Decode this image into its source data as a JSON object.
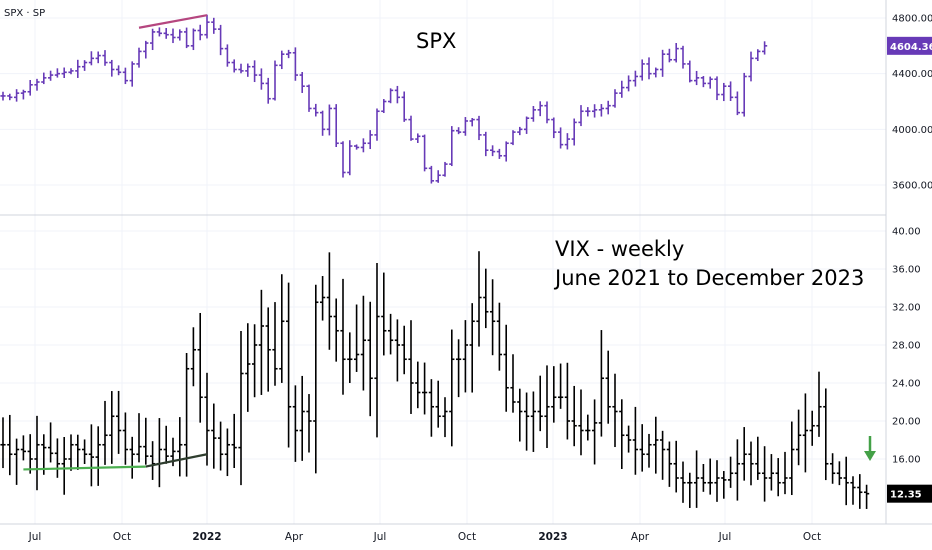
{
  "symbol_label": "SPX · SP",
  "colors": {
    "spx": "#673ab7",
    "vix": "#000000",
    "spx_last_bg": "#673ab7",
    "vix_last_bg": "#000000",
    "top_trendline": "#b5467f",
    "green_trendline": "#4caf50",
    "dark_trendline": "#2e3d2e",
    "arrow": "#43a047",
    "grid": "#f0f3fa",
    "axis_border": "#d1d4dc"
  },
  "time_axis": [
    "Jul",
    "Oct",
    "2022",
    "Apr",
    "Jul",
    "Oct",
    "2023",
    "Apr",
    "Jul",
    "Oct"
  ],
  "annotations": {
    "spx_title": "SPX",
    "vix_line1": "VIX - weekly",
    "vix_line2": "June 2021 to December 2023"
  },
  "chart_data": [
    {
      "type": "ohlc",
      "title": "SPX",
      "symbol": "SPX · SP",
      "frequency": "weekly",
      "ylim": [
        3400,
        4950
      ],
      "yticks": [
        3600,
        4000,
        4400,
        4800
      ],
      "ytick_labels": [
        "3600.00",
        "4000.00",
        "4400.00",
        "4800.00"
      ],
      "last_value": "4604.36",
      "grid": true,
      "trendlines": [
        {
          "color": "top_trendline",
          "from": {
            "week": 20,
            "value": 4730
          },
          "to": {
            "week": 30,
            "value": 4820
          }
        }
      ],
      "bars_weekly_close": [
        4240,
        4230,
        4260,
        4270,
        4320,
        4340,
        4370,
        4390,
        4400,
        4410,
        4420,
        4450,
        4480,
        4510,
        4530,
        4480,
        4430,
        4410,
        4350,
        4470,
        4560,
        4620,
        4700,
        4690,
        4680,
        4660,
        4700,
        4600,
        4710,
        4680,
        4770,
        4720,
        4580,
        4480,
        4430,
        4420,
        4450,
        4390,
        4330,
        4220,
        4460,
        4540,
        4550,
        4390,
        4310,
        4150,
        4120,
        4000,
        4150,
        3900,
        3690,
        3880,
        3870,
        3900,
        3960,
        4130,
        4200,
        4280,
        4230,
        4070,
        3930,
        3950,
        3720,
        3630,
        3670,
        3750,
        3990,
        3980,
        4060,
        4070,
        3960,
        3850,
        3840,
        3810,
        3900,
        3980,
        4000,
        4080,
        4140,
        4170,
        4070,
        3980,
        3890,
        3930,
        4050,
        4130,
        4130,
        4140,
        4150,
        4170,
        4260,
        4300,
        4350,
        4380,
        4470,
        4400,
        4430,
        4540,
        4500,
        4580,
        4470,
        4350,
        4370,
        4330,
        4360,
        4250,
        4310,
        4230,
        4120,
        4380,
        4510,
        4560,
        4600
      ]
    },
    {
      "type": "ohlc",
      "title": "VIX - weekly",
      "subtitle": "June 2021 to December 2023",
      "frequency": "weekly",
      "ylim": [
        11,
        40
      ],
      "yticks": [
        16,
        20,
        24,
        28,
        32,
        36,
        40
      ],
      "ytick_labels": [
        "16.00",
        "20.00",
        "24.00",
        "28.00",
        "32.00",
        "36.00",
        "40.00"
      ],
      "last_value": "12.35",
      "grid": true,
      "trendlines": [
        {
          "color": "green_trendline",
          "from": {
            "week": 3,
            "value": 14.9
          },
          "to": {
            "week": 21,
            "value": 15.2
          }
        },
        {
          "color": "dark_trendline",
          "from": {
            "week": 21,
            "value": 15.2
          },
          "to": {
            "week": 30,
            "value": 16.5
          }
        }
      ],
      "bars_weekly_close": [
        17.5,
        16.5,
        17.0,
        16.8,
        16.0,
        17.5,
        17.2,
        16.6,
        15.5,
        16.0,
        17.5,
        17.0,
        16.5,
        16.2,
        17.5,
        18.5,
        20.5,
        19.0,
        17.0,
        16.5,
        17.3,
        16.3,
        15.5,
        17.0,
        16.3,
        16.8,
        17.5,
        25.5,
        27.5,
        22.5,
        19.0,
        18.2,
        16.5,
        17.5,
        17.2,
        25.0,
        26.0,
        28.0,
        30.0,
        27.5,
        25.5,
        30.5,
        21.5,
        19.0,
        21.0,
        20.0,
        32.5,
        33.0,
        31.0,
        29.5,
        26.5,
        26.5,
        27.0,
        28.5,
        24.5,
        31.0,
        29.5,
        28.5,
        28.0,
        26.5,
        24.0,
        23.0,
        23.0,
        21.5,
        20.5,
        21.0,
        26.5,
        26.5,
        28.0,
        30.5,
        33.0,
        31.5,
        30.5,
        27.0,
        23.5,
        22.0,
        21.0,
        20.5,
        21.0,
        20.5,
        21.5,
        22.5,
        22.5,
        20.0,
        19.5,
        19.0,
        19.0,
        19.8,
        24.5,
        21.5,
        21.0,
        18.5,
        18.0,
        17.0,
        16.5,
        17.5,
        18.0,
        17.0,
        15.5,
        14.0,
        13.5,
        13.5,
        14.0,
        13.5,
        13.5,
        14.0,
        13.8,
        14.5,
        15.5,
        16.5,
        15.5,
        14.5,
        14.0,
        14.5,
        13.5,
        14.0,
        17.0,
        18.5,
        19.0,
        19.5,
        21.5,
        15.5,
        14.5,
        14.0,
        13.5,
        13.0,
        12.5,
        12.35
      ]
    }
  ]
}
